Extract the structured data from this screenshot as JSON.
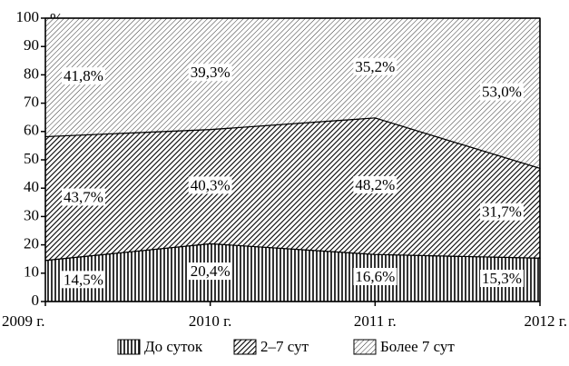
{
  "chart_data": {
    "type": "area",
    "stacked": true,
    "y_unit": "%",
    "categories": [
      "2009 г.",
      "2010 г.",
      "2011 г.",
      "2012 г."
    ],
    "series": [
      {
        "name": "До суток",
        "color": "#000000",
        "pattern": "vertical",
        "values": [
          14.5,
          20.4,
          16.6,
          15.3
        ],
        "value_labels": [
          "14,5%",
          "20,4%",
          "16,6%",
          "15,3%"
        ]
      },
      {
        "name": "2–7 сут",
        "color": "#000000",
        "pattern": "dense-diagonal",
        "values": [
          43.7,
          40.3,
          48.2,
          31.7
        ],
        "value_labels": [
          "43,7%",
          "40,3%",
          "48,2%",
          "31,7%"
        ]
      },
      {
        "name": "Более 7 сут",
        "color": "#000000",
        "pattern": "sparse-diagonal",
        "values": [
          41.8,
          39.3,
          35.2,
          53.0
        ],
        "value_labels": [
          "41,8%",
          "39,3%",
          "35,2%",
          "53,0%"
        ]
      }
    ],
    "ylim": [
      0,
      100
    ],
    "yticks": [
      0,
      10,
      20,
      30,
      40,
      50,
      60,
      70,
      80,
      90,
      100
    ],
    "legend": "bottom"
  }
}
